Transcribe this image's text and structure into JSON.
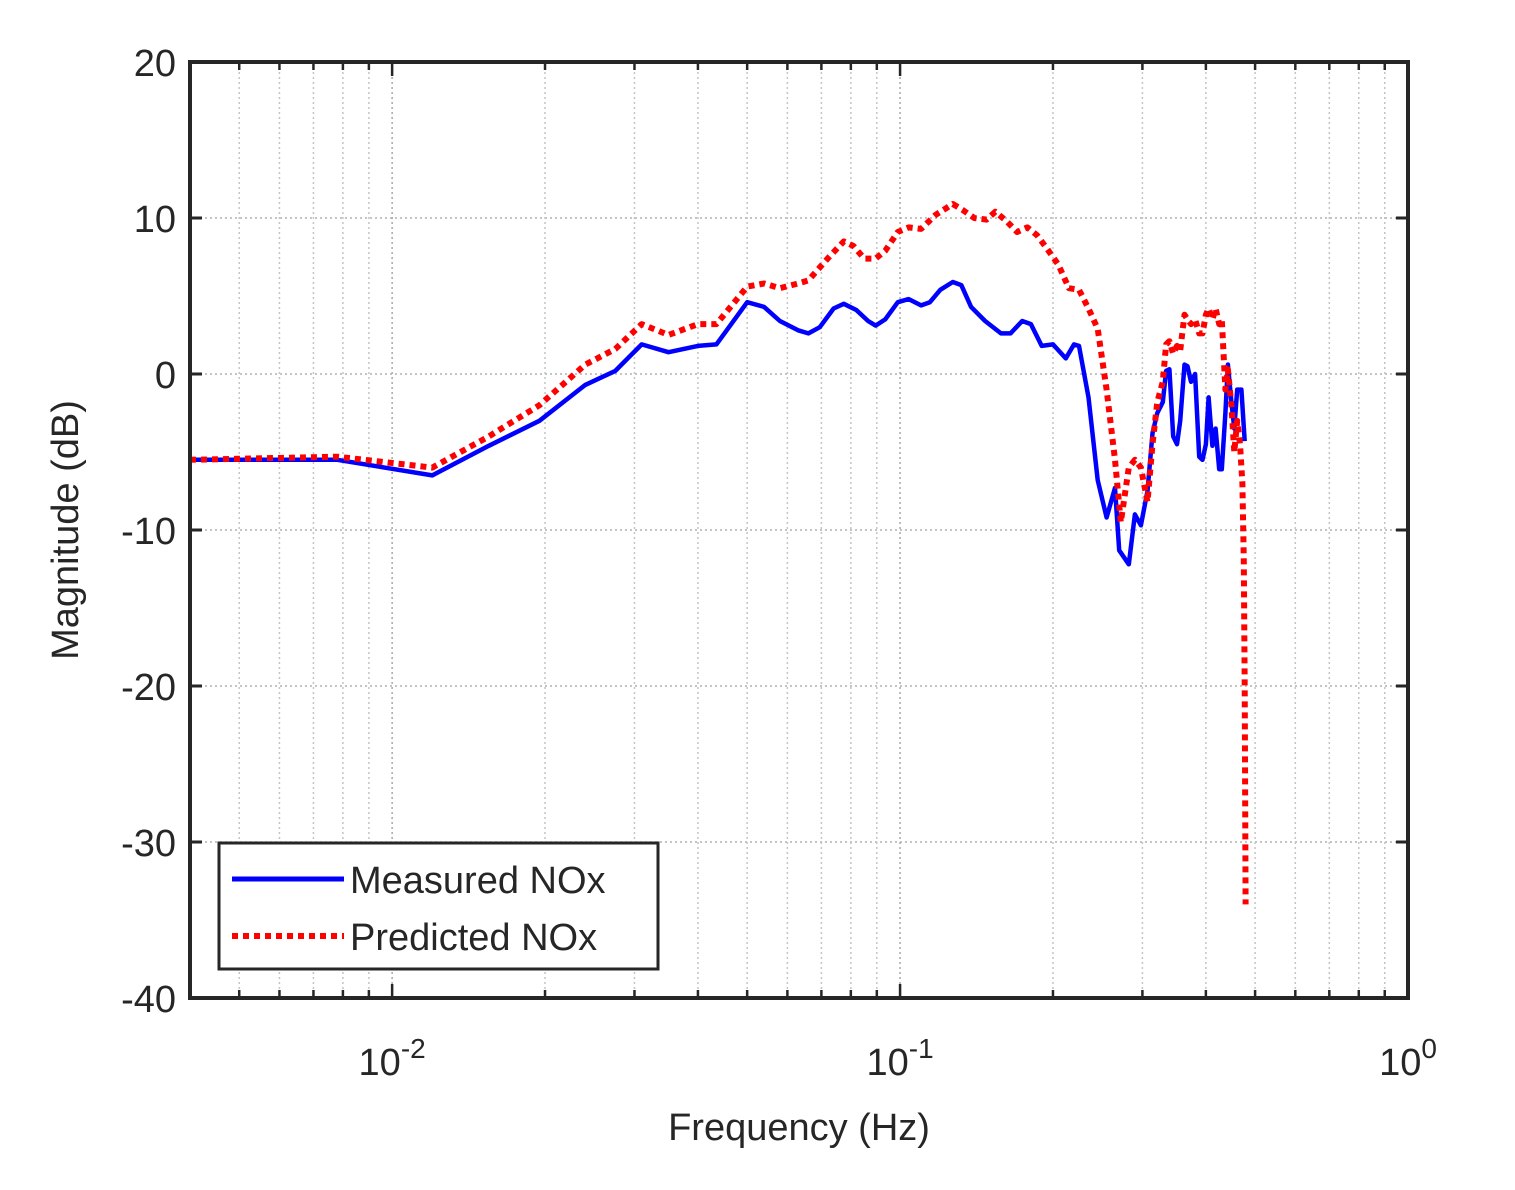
{
  "chart_data": {
    "type": "line",
    "x_scale": "log",
    "xlabel": "Frequency (Hz)",
    "ylabel": "Magnitude (dB)",
    "xlim": [
      0.004,
      1
    ],
    "ylim": [
      -40,
      20
    ],
    "x_ticks": [
      {
        "value": 0.01,
        "base": "10",
        "exp": "-2"
      },
      {
        "value": 0.1,
        "base": "10",
        "exp": "-1"
      },
      {
        "value": 1,
        "base": "10",
        "exp": "0"
      }
    ],
    "y_ticks": [
      {
        "value": 20,
        "label": "20"
      },
      {
        "value": 10,
        "label": "10"
      },
      {
        "value": 0,
        "label": "0"
      },
      {
        "value": -10,
        "label": "-10"
      },
      {
        "value": -20,
        "label": "-20"
      },
      {
        "value": -30,
        "label": "-30"
      },
      {
        "value": -40,
        "label": "-40"
      }
    ],
    "grid": true,
    "legend_position": "bottom-left",
    "series": [
      {
        "name": "Measured NOx",
        "color": "#0000ff",
        "style": "solid",
        "points": [
          [
            0.004,
            -5.5
          ],
          [
            0.0078,
            -5.5
          ],
          [
            0.012,
            -6.5
          ],
          [
            0.0155,
            -4.6
          ],
          [
            0.0195,
            -3.0
          ],
          [
            0.024,
            -0.7
          ],
          [
            0.0275,
            0.2
          ],
          [
            0.031,
            1.9
          ],
          [
            0.035,
            1.4
          ],
          [
            0.04,
            1.8
          ],
          [
            0.0435,
            1.9
          ],
          [
            0.05,
            4.6
          ],
          [
            0.054,
            4.3
          ],
          [
            0.058,
            3.4
          ],
          [
            0.063,
            2.8
          ],
          [
            0.066,
            2.6
          ],
          [
            0.0695,
            3.0
          ],
          [
            0.074,
            4.2
          ],
          [
            0.0775,
            4.5
          ],
          [
            0.082,
            4.1
          ],
          [
            0.0865,
            3.4
          ],
          [
            0.0895,
            3.1
          ],
          [
            0.0935,
            3.5
          ],
          [
            0.099,
            4.6
          ],
          [
            0.104,
            4.8
          ],
          [
            0.11,
            4.4
          ],
          [
            0.1145,
            4.6
          ],
          [
            0.12,
            5.4
          ],
          [
            0.127,
            5.9
          ],
          [
            0.132,
            5.7
          ],
          [
            0.138,
            4.3
          ],
          [
            0.147,
            3.4
          ],
          [
            0.158,
            2.6
          ],
          [
            0.165,
            2.6
          ],
          [
            0.174,
            3.4
          ],
          [
            0.181,
            3.2
          ],
          [
            0.19,
            1.8
          ],
          [
            0.2,
            1.9
          ],
          [
            0.212,
            1.0
          ],
          [
            0.22,
            1.9
          ],
          [
            0.225,
            1.8
          ],
          [
            0.235,
            -1.5
          ],
          [
            0.245,
            -6.8
          ],
          [
            0.255,
            -9.2
          ],
          [
            0.265,
            -7.3
          ],
          [
            0.27,
            -11.3
          ],
          [
            0.282,
            -12.2
          ],
          [
            0.29,
            -9.0
          ],
          [
            0.298,
            -9.7
          ],
          [
            0.307,
            -7.5
          ],
          [
            0.314,
            -3.8
          ],
          [
            0.321,
            -2.5
          ],
          [
            0.329,
            -1.8
          ],
          [
            0.334,
            0.2
          ],
          [
            0.339,
            0.3
          ],
          [
            0.345,
            -4.0
          ],
          [
            0.351,
            -4.5
          ],
          [
            0.356,
            -3.0
          ],
          [
            0.363,
            0.6
          ],
          [
            0.368,
            0.5
          ],
          [
            0.374,
            -0.5
          ],
          [
            0.381,
            0.0
          ],
          [
            0.388,
            -5.3
          ],
          [
            0.394,
            -5.5
          ],
          [
            0.4,
            -4.5
          ],
          [
            0.405,
            -1.5
          ],
          [
            0.412,
            -4.6
          ],
          [
            0.418,
            -3.5
          ],
          [
            0.425,
            -6.1
          ],
          [
            0.43,
            -6.1
          ],
          [
            0.437,
            -2.5
          ],
          [
            0.442,
            0.6
          ],
          [
            0.449,
            -1.8
          ],
          [
            0.455,
            -3.5
          ],
          [
            0.461,
            -1.0
          ],
          [
            0.47,
            -1.0
          ],
          [
            0.477,
            -4.3
          ]
        ]
      },
      {
        "name": "Predicted NOx",
        "color": "#ff0000",
        "style": "dotted",
        "points": [
          [
            0.004,
            -5.5
          ],
          [
            0.0078,
            -5.3
          ],
          [
            0.012,
            -6.0
          ],
          [
            0.0155,
            -4.0
          ],
          [
            0.0195,
            -2.0
          ],
          [
            0.024,
            0.6
          ],
          [
            0.0275,
            1.6
          ],
          [
            0.031,
            3.2
          ],
          [
            0.035,
            2.5
          ],
          [
            0.04,
            3.2
          ],
          [
            0.0435,
            3.2
          ],
          [
            0.05,
            5.6
          ],
          [
            0.054,
            5.8
          ],
          [
            0.058,
            5.5
          ],
          [
            0.063,
            5.8
          ],
          [
            0.066,
            6.0
          ],
          [
            0.072,
            7.4
          ],
          [
            0.0775,
            8.5
          ],
          [
            0.081,
            8.2
          ],
          [
            0.085,
            7.4
          ],
          [
            0.0895,
            7.4
          ],
          [
            0.0935,
            7.9
          ],
          [
            0.099,
            9.1
          ],
          [
            0.104,
            9.4
          ],
          [
            0.11,
            9.3
          ],
          [
            0.1175,
            10.2
          ],
          [
            0.127,
            10.9
          ],
          [
            0.133,
            10.5
          ],
          [
            0.14,
            10.0
          ],
          [
            0.148,
            9.9
          ],
          [
            0.154,
            10.4
          ],
          [
            0.162,
            9.8
          ],
          [
            0.17,
            9.1
          ],
          [
            0.178,
            9.4
          ],
          [
            0.186,
            8.9
          ],
          [
            0.195,
            8.0
          ],
          [
            0.205,
            7.0
          ],
          [
            0.215,
            5.5
          ],
          [
            0.225,
            5.4
          ],
          [
            0.235,
            4.2
          ],
          [
            0.245,
            2.9
          ],
          [
            0.255,
            -1.0
          ],
          [
            0.265,
            -5.5
          ],
          [
            0.272,
            -9.5
          ],
          [
            0.282,
            -6.0
          ],
          [
            0.29,
            -5.5
          ],
          [
            0.298,
            -6.0
          ],
          [
            0.307,
            -8.2
          ],
          [
            0.314,
            -4.5
          ],
          [
            0.321,
            -1.8
          ],
          [
            0.329,
            -0.5
          ],
          [
            0.334,
            1.9
          ],
          [
            0.339,
            2.1
          ],
          [
            0.345,
            1.3
          ],
          [
            0.351,
            1.8
          ],
          [
            0.356,
            1.5
          ],
          [
            0.363,
            3.8
          ],
          [
            0.368,
            3.5
          ],
          [
            0.374,
            3.2
          ],
          [
            0.381,
            3.5
          ],
          [
            0.388,
            2.6
          ],
          [
            0.394,
            2.6
          ],
          [
            0.4,
            3.8
          ],
          [
            0.405,
            4.2
          ],
          [
            0.412,
            3.5
          ],
          [
            0.418,
            4.2
          ],
          [
            0.425,
            3.2
          ],
          [
            0.43,
            3.5
          ],
          [
            0.437,
            -1.0
          ],
          [
            0.442,
            0.3
          ],
          [
            0.449,
            -2.0
          ],
          [
            0.455,
            -5.0
          ],
          [
            0.461,
            -3.0
          ],
          [
            0.467,
            -4.5
          ],
          [
            0.472,
            -7.0
          ],
          [
            0.475,
            -12.0
          ],
          [
            0.477,
            -20.0
          ],
          [
            0.479,
            -34.0
          ]
        ]
      }
    ]
  }
}
